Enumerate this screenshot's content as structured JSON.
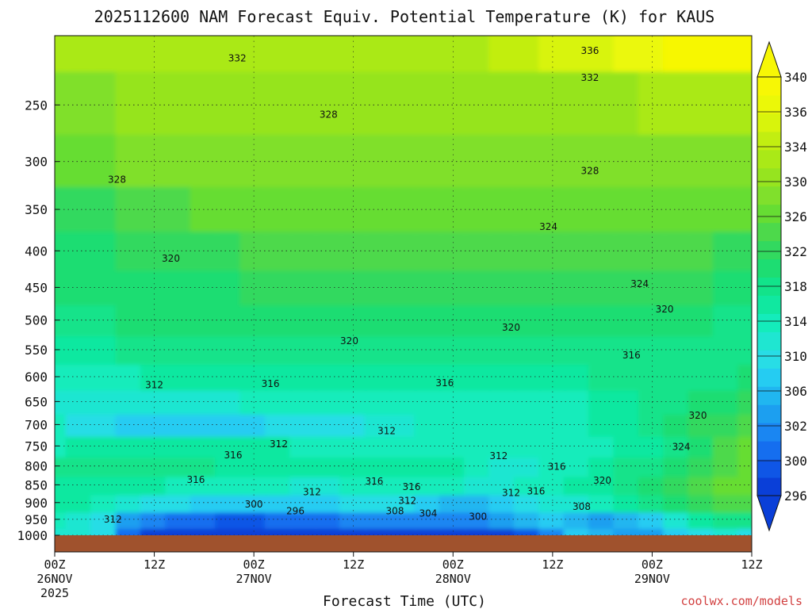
{
  "chart_data": {
    "type": "heatmap",
    "title": "2025112600 NAM Forecast Equiv. Potential Temperature (K) for KAUS",
    "xlabel": "Forecast Time (UTC)",
    "ylabel": "",
    "credit": "coolwx.com/models",
    "x_hours": [
      0,
      3,
      6,
      9,
      12,
      15,
      18,
      21,
      24,
      27,
      30,
      33,
      36,
      39,
      42,
      45,
      48,
      51,
      54,
      57,
      60,
      63,
      66,
      69,
      72,
      75,
      78,
      81,
      84
    ],
    "x_ticks": [
      {
        "hour": 0,
        "label": "00Z",
        "date": "26NOV",
        "year": "2025"
      },
      {
        "hour": 12,
        "label": "12Z",
        "date": "",
        "year": ""
      },
      {
        "hour": 24,
        "label": "00Z",
        "date": "27NOV",
        "year": ""
      },
      {
        "hour": 36,
        "label": "12Z",
        "date": "",
        "year": ""
      },
      {
        "hour": 48,
        "label": "00Z",
        "date": "28NOV",
        "year": ""
      },
      {
        "hour": 60,
        "label": "12Z",
        "date": "",
        "year": ""
      },
      {
        "hour": 72,
        "label": "00Z",
        "date": "29NOV",
        "year": ""
      },
      {
        "hour": 84,
        "label": "12Z",
        "date": "",
        "year": ""
      }
    ],
    "y_pressure_hpa": [
      1000,
      950,
      900,
      850,
      800,
      750,
      700,
      650,
      600,
      550,
      500,
      450,
      400,
      350,
      300,
      250,
      200
    ],
    "y_ticks": [
      250,
      300,
      350,
      400,
      450,
      500,
      550,
      600,
      650,
      700,
      750,
      800,
      850,
      900,
      950,
      1000
    ],
    "y_range": [
      1000,
      200
    ],
    "y_scale": "log-pressure",
    "xlim": [
      0,
      84
    ],
    "grid": true,
    "values_K": [
      [
        312,
        312,
        310,
        300,
        296,
        296,
        296,
        296,
        296,
        296,
        296,
        296,
        296,
        296,
        296,
        296,
        296,
        296,
        296,
        298,
        302,
        308,
        306,
        304,
        304,
        308,
        310,
        312,
        310
      ],
      [
        314,
        312,
        310,
        304,
        302,
        300,
        300,
        298,
        298,
        300,
        300,
        300,
        302,
        302,
        302,
        302,
        302,
        302,
        304,
        306,
        308,
        306,
        304,
        306,
        308,
        312,
        316,
        318,
        318
      ],
      [
        316,
        316,
        314,
        312,
        310,
        310,
        308,
        308,
        308,
        308,
        308,
        308,
        310,
        310,
        310,
        308,
        306,
        306,
        308,
        310,
        312,
        312,
        314,
        316,
        318,
        320,
        322,
        324,
        324
      ],
      [
        316,
        316,
        316,
        316,
        316,
        314,
        314,
        314,
        314,
        314,
        312,
        312,
        314,
        314,
        314,
        314,
        314,
        312,
        312,
        314,
        314,
        316,
        316,
        318,
        320,
        322,
        324,
        326,
        326
      ],
      [
        318,
        318,
        318,
        318,
        318,
        318,
        318,
        316,
        316,
        316,
        316,
        316,
        316,
        316,
        316,
        316,
        316,
        314,
        312,
        312,
        314,
        314,
        316,
        318,
        318,
        320,
        322,
        324,
        326
      ],
      [
        314,
        316,
        316,
        316,
        316,
        316,
        316,
        316,
        316,
        316,
        314,
        314,
        314,
        314,
        314,
        314,
        314,
        314,
        314,
        314,
        314,
        314,
        314,
        316,
        316,
        318,
        320,
        324,
        326
      ],
      [
        314,
        310,
        310,
        308,
        308,
        308,
        308,
        308,
        308,
        310,
        310,
        310,
        310,
        312,
        312,
        314,
        314,
        314,
        314,
        314,
        314,
        314,
        316,
        316,
        318,
        320,
        322,
        322,
        324
      ],
      [
        312,
        312,
        312,
        312,
        312,
        312,
        312,
        312,
        314,
        314,
        314,
        314,
        314,
        314,
        314,
        314,
        314,
        314,
        314,
        314,
        314,
        314,
        316,
        316,
        318,
        318,
        320,
        320,
        322
      ],
      [
        314,
        314,
        314,
        314,
        316,
        316,
        316,
        316,
        316,
        316,
        316,
        316,
        316,
        316,
        316,
        316,
        316,
        316,
        316,
        316,
        316,
        316,
        318,
        318,
        318,
        318,
        318,
        318,
        320
      ],
      [
        316,
        316,
        316,
        318,
        318,
        318,
        318,
        318,
        318,
        318,
        318,
        318,
        318,
        318,
        318,
        318,
        318,
        318,
        318,
        318,
        318,
        318,
        318,
        318,
        318,
        318,
        318,
        318,
        318
      ],
      [
        318,
        318,
        318,
        320,
        320,
        320,
        320,
        320,
        320,
        320,
        320,
        320,
        320,
        320,
        320,
        320,
        320,
        320,
        320,
        320,
        320,
        320,
        320,
        320,
        320,
        320,
        320,
        318,
        318
      ],
      [
        320,
        320,
        320,
        320,
        320,
        320,
        320,
        320,
        322,
        322,
        322,
        322,
        322,
        322,
        322,
        322,
        322,
        322,
        322,
        322,
        322,
        322,
        322,
        322,
        322,
        322,
        322,
        320,
        320
      ],
      [
        320,
        320,
        320,
        322,
        322,
        322,
        322,
        322,
        324,
        324,
        324,
        324,
        324,
        324,
        324,
        324,
        324,
        324,
        324,
        324,
        324,
        324,
        324,
        324,
        324,
        324,
        324,
        322,
        322
      ],
      [
        322,
        322,
        322,
        324,
        324,
        324,
        326,
        326,
        326,
        326,
        326,
        326,
        326,
        326,
        326,
        326,
        326,
        326,
        326,
        326,
        326,
        326,
        326,
        326,
        326,
        326,
        326,
        326,
        326
      ],
      [
        326,
        326,
        326,
        328,
        328,
        328,
        328,
        328,
        328,
        328,
        328,
        328,
        328,
        328,
        328,
        328,
        328,
        328,
        328,
        328,
        328,
        328,
        328,
        328,
        328,
        328,
        328,
        328,
        328
      ],
      [
        328,
        328,
        328,
        330,
        330,
        330,
        330,
        330,
        330,
        330,
        330,
        330,
        330,
        330,
        330,
        330,
        330,
        330,
        330,
        330,
        330,
        330,
        330,
        330,
        332,
        332,
        332,
        332,
        332
      ],
      [
        332,
        332,
        332,
        332,
        332,
        332,
        332,
        332,
        332,
        332,
        332,
        332,
        332,
        332,
        332,
        332,
        332,
        332,
        334,
        334,
        336,
        336,
        336,
        338,
        338,
        340,
        340,
        340,
        340
      ]
    ],
    "contour_interval_K": 4,
    "contour_labels": [
      {
        "value": 332,
        "hour": 22.0,
        "p": 215
      },
      {
        "value": 336,
        "hour": 64.5,
        "p": 210
      },
      {
        "value": 332,
        "hour": 64.5,
        "p": 229
      },
      {
        "value": 328,
        "hour": 33.0,
        "p": 258
      },
      {
        "value": 328,
        "hour": 7.5,
        "p": 318
      },
      {
        "value": 328,
        "hour": 64.5,
        "p": 309
      },
      {
        "value": 324,
        "hour": 59.5,
        "p": 370
      },
      {
        "value": 320,
        "hour": 14.0,
        "p": 410
      },
      {
        "value": 324,
        "hour": 70.5,
        "p": 445
      },
      {
        "value": 320,
        "hour": 73.5,
        "p": 483
      },
      {
        "value": 320,
        "hour": 55.0,
        "p": 512
      },
      {
        "value": 320,
        "hour": 35.5,
        "p": 535
      },
      {
        "value": 316,
        "hour": 69.5,
        "p": 560
      },
      {
        "value": 312,
        "hour": 12.0,
        "p": 616
      },
      {
        "value": 316,
        "hour": 26.0,
        "p": 614
      },
      {
        "value": 316,
        "hour": 47.0,
        "p": 612
      },
      {
        "value": 320,
        "hour": 77.5,
        "p": 680
      },
      {
        "value": 312,
        "hour": 40.0,
        "p": 715
      },
      {
        "value": 312,
        "hour": 27.0,
        "p": 745
      },
      {
        "value": 324,
        "hour": 75.5,
        "p": 752
      },
      {
        "value": 316,
        "hour": 21.5,
        "p": 773
      },
      {
        "value": 312,
        "hour": 53.5,
        "p": 775
      },
      {
        "value": 316,
        "hour": 60.5,
        "p": 802
      },
      {
        "value": 316,
        "hour": 17.0,
        "p": 836
      },
      {
        "value": 316,
        "hour": 38.5,
        "p": 840
      },
      {
        "value": 320,
        "hour": 66.0,
        "p": 838
      },
      {
        "value": 316,
        "hour": 43.0,
        "p": 856
      },
      {
        "value": 312,
        "hour": 31.0,
        "p": 870
      },
      {
        "value": 312,
        "hour": 55.0,
        "p": 872
      },
      {
        "value": 316,
        "hour": 58.0,
        "p": 868
      },
      {
        "value": 312,
        "hour": 42.5,
        "p": 895
      },
      {
        "value": 300,
        "hour": 24.0,
        "p": 905
      },
      {
        "value": 308,
        "hour": 63.5,
        "p": 912
      },
      {
        "value": 296,
        "hour": 29.0,
        "p": 925
      },
      {
        "value": 308,
        "hour": 41.0,
        "p": 925
      },
      {
        "value": 304,
        "hour": 45.0,
        "p": 932
      },
      {
        "value": 300,
        "hour": 51.0,
        "p": 942
      },
      {
        "value": 312,
        "hour": 7.0,
        "p": 950
      }
    ],
    "colorbar": {
      "levels": [
        296,
        298,
        300,
        302,
        304,
        306,
        308,
        310,
        312,
        314,
        316,
        318,
        320,
        322,
        324,
        326,
        328,
        330,
        332,
        334,
        336,
        338,
        340
      ],
      "labels": [
        296,
        300,
        302,
        306,
        310,
        314,
        318,
        322,
        326,
        330,
        334,
        336,
        340
      ],
      "colors": [
        "#0a3fd8",
        "#0f56e6",
        "#156eef",
        "#1a86f2",
        "#1c9ff0",
        "#20b6f0",
        "#25ccf2",
        "#28dde6",
        "#1fe6d1",
        "#14ecbb",
        "#10e8a0",
        "#12e38a",
        "#1ddd72",
        "#32d95f",
        "#4dd94b",
        "#66dd33",
        "#80e02c",
        "#96e41f",
        "#aae917",
        "#c2ee11",
        "#d8f40c",
        "#ebf808",
        "#f7f705"
      ]
    },
    "surface_color": "#a0522d"
  }
}
